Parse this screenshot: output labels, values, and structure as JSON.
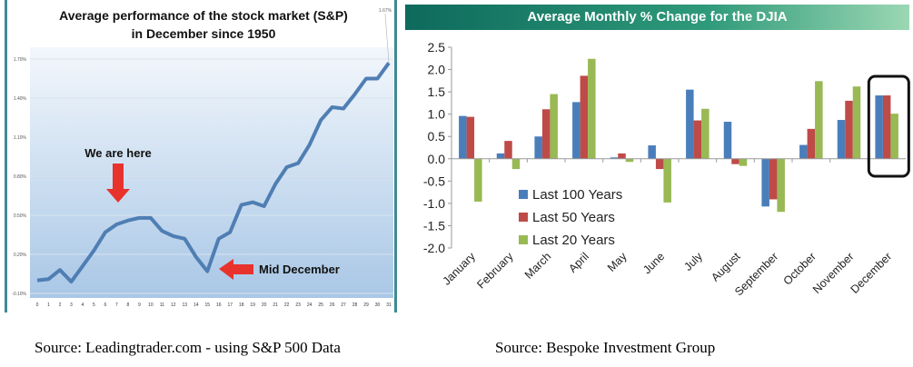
{
  "chart_data": [
    {
      "type": "line",
      "title": "Average performance of the stock market (S&P)",
      "subtitle": "in December since 1950",
      "x": [
        0,
        1,
        2,
        3,
        4,
        5,
        6,
        7,
        8,
        9,
        10,
        11,
        12,
        13,
        14,
        15,
        16,
        17,
        18,
        19,
        20,
        21,
        22,
        23,
        24,
        25,
        26,
        27,
        28,
        29,
        30,
        31
      ],
      "y": [
        0.0,
        0.01,
        0.08,
        -0.01,
        0.11,
        0.23,
        0.37,
        0.43,
        0.46,
        0.48,
        0.48,
        0.38,
        0.34,
        0.32,
        0.18,
        0.07,
        0.32,
        0.37,
        0.58,
        0.6,
        0.57,
        0.74,
        0.87,
        0.9,
        1.04,
        1.23,
        1.33,
        1.32,
        1.43,
        1.55,
        1.55,
        1.67
      ],
      "ytick_labels": [
        "-0.10%",
        "0.20%",
        "0.50%",
        "0.80%",
        "1.10%",
        "1.40%",
        "1.70%"
      ],
      "ylim": [
        -0.1,
        1.7
      ],
      "grid": true,
      "line_color": "#4f7eb3",
      "end_label": "1.67%",
      "annotations": [
        {
          "text": "We are here",
          "x": 7
        },
        {
          "text": "Mid December",
          "x": 15
        }
      ],
      "arrow_color": "#e8322c"
    },
    {
      "type": "bar",
      "title": "Average Monthly % Change for the DJIA",
      "categories": [
        "January",
        "February",
        "March",
        "April",
        "May",
        "June",
        "July",
        "August",
        "September",
        "October",
        "November",
        "December"
      ],
      "series": [
        {
          "name": "Last 100 Years",
          "color": "#4a7ebb",
          "values": [
            0.96,
            0.12,
            0.5,
            1.27,
            0.03,
            0.3,
            1.55,
            0.83,
            -1.07,
            0.31,
            0.87,
            1.42
          ]
        },
        {
          "name": "Last 50 Years",
          "color": "#be4b48",
          "values": [
            0.94,
            0.4,
            1.11,
            1.86,
            0.12,
            -0.23,
            0.86,
            -0.12,
            -0.91,
            0.67,
            1.3,
            1.42
          ]
        },
        {
          "name": "Last 20 Years",
          "color": "#98b954",
          "values": [
            -0.96,
            -0.23,
            1.45,
            2.24,
            -0.07,
            -0.98,
            1.12,
            -0.16,
            -1.19,
            1.74,
            1.62,
            1.01
          ]
        }
      ],
      "ylim": [
        -2.0,
        2.5
      ],
      "ytick_labels": [
        "2.5",
        "2.0",
        "1.5",
        "1.0",
        "0.5",
        "0.0",
        "-0.5",
        "-1.0",
        "-1.5",
        "-2.0"
      ],
      "legend": "center-left",
      "highlight": "December"
    }
  ],
  "sources": {
    "left": "Source: Leadingtrader.com  - using S&P 500 Data",
    "right": "Source: Bespoke Investment Group"
  }
}
